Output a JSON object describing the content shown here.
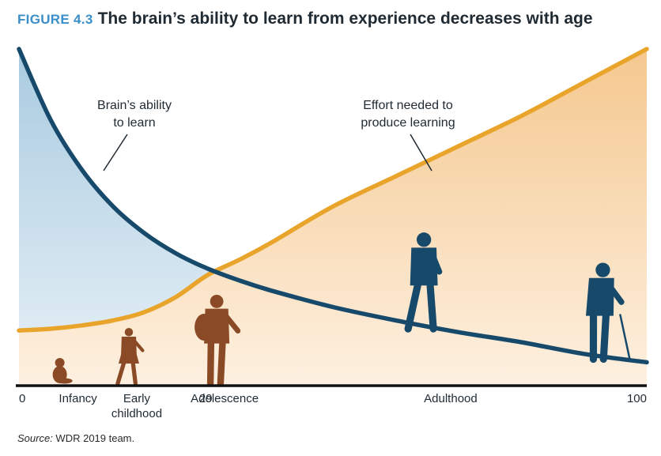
{
  "figure": {
    "label": "FIGURE 4.3",
    "title": "The brain’s ability to learn from experience decreases with age"
  },
  "source": {
    "label": "Source:",
    "text": " WDR 2019 team."
  },
  "colors": {
    "brain": "#17496b",
    "effort": "#e9a42b",
    "brain_fill": "#c4dcea",
    "effort_fill": "#f7d09c",
    "figure_silhouette_blue": "#17496b",
    "figure_silhouette_brown": "#8a4a26"
  },
  "chart_data": {
    "type": "line",
    "title": "The brain’s ability to learn from experience decreases with age",
    "xlabel": "",
    "ylabel": "",
    "xlim": [
      0,
      100
    ],
    "ylim": [
      0,
      1
    ],
    "x_ticks": [
      {
        "x": 0,
        "label": "0"
      },
      {
        "x": 29,
        "label": "29"
      },
      {
        "x": 100,
        "label": "100"
      }
    ],
    "stage_labels": [
      {
        "x": 6.5,
        "lines": [
          "Infancy"
        ]
      },
      {
        "x": 17.5,
        "lines": [
          "Early",
          "childhood"
        ]
      },
      {
        "x": 31.5,
        "lines": [
          "Adolescence"
        ]
      },
      {
        "x": 67.5,
        "lines": [
          "Adulthood"
        ]
      }
    ],
    "series": [
      {
        "name": "Brain’s ability to learn",
        "x": [
          0,
          5,
          10,
          15,
          20,
          25,
          30,
          35,
          40,
          50,
          60,
          70,
          80,
          90,
          100
        ],
        "y": [
          1.0,
          0.79,
          0.64,
          0.53,
          0.45,
          0.39,
          0.345,
          0.31,
          0.28,
          0.23,
          0.19,
          0.155,
          0.125,
          0.09,
          0.065
        ]
      },
      {
        "name": "Effort needed to produce learning",
        "x": [
          0,
          5,
          10,
          15,
          20,
          25,
          30,
          35,
          40,
          50,
          60,
          70,
          80,
          90,
          100
        ],
        "y": [
          0.16,
          0.165,
          0.175,
          0.19,
          0.215,
          0.26,
          0.325,
          0.37,
          0.42,
          0.53,
          0.62,
          0.71,
          0.8,
          0.9,
          1.0
        ]
      }
    ],
    "annotations": [
      {
        "lines": [
          "Brain’s ability",
          "to learn"
        ],
        "series": 0
      },
      {
        "lines": [
          "Effort needed to",
          "produce learning"
        ],
        "series": 1
      }
    ],
    "life_stage_figures": [
      {
        "name": "infant",
        "x": 6.5
      },
      {
        "name": "child",
        "x": 17.5
      },
      {
        "name": "adolescent",
        "x": 31.5
      },
      {
        "name": "adult",
        "x": 64.5
      },
      {
        "name": "elderly",
        "x": 92.5
      }
    ],
    "grid": false,
    "legend": "none"
  }
}
